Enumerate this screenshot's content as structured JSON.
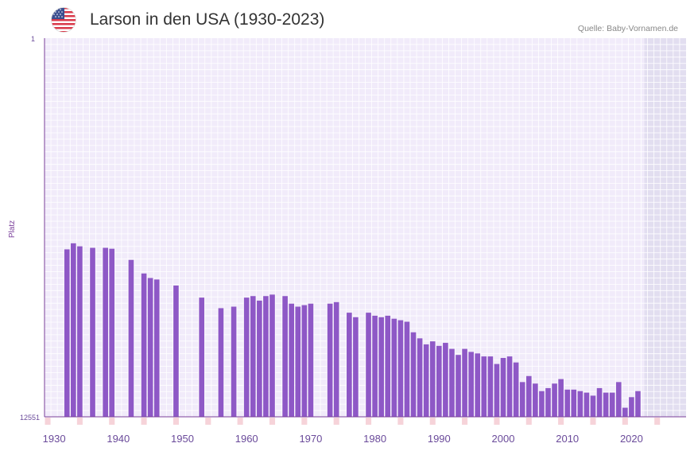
{
  "header": {
    "title": "Larson in den USA (1930-2023)",
    "source": "Quelle: Baby-Vornamen.de",
    "flag_icon": "us-flag-icon"
  },
  "colors": {
    "bar": "#8e58c6",
    "plot_bg": "#f1ebfa",
    "future_bg": "#e2def0",
    "grid": "#ffffff",
    "axis": "#7a3f9a",
    "tick_mark": "#de6a78",
    "tick_mark_light": "#f6d3d9"
  },
  "chart_data": {
    "type": "bar",
    "title": "Larson in den USA (1930-2023)",
    "xlabel": "",
    "ylabel": "Platz",
    "yaxis_top_label": "1",
    "yaxis_bottom_label": "12551",
    "ylim": [
      1,
      12551
    ],
    "xlim": [
      1929,
      2029
    ],
    "x_ticks": [
      1930,
      1940,
      1950,
      1960,
      1970,
      1980,
      1990,
      2000,
      2010,
      2020
    ],
    "future_start": 2022.5,
    "series": [
      {
        "name": "Platz",
        "x": [
          1932,
          1933,
          1934,
          1936,
          1938,
          1939,
          1942,
          1944,
          1945,
          1946,
          1949,
          1953,
          1956,
          1958,
          1960,
          1961,
          1962,
          1963,
          1964,
          1966,
          1967,
          1968,
          1969,
          1970,
          1973,
          1974,
          1976,
          1977,
          1979,
          1980,
          1981,
          1982,
          1983,
          1984,
          1985,
          1986,
          1987,
          1988,
          1989,
          1990,
          1991,
          1992,
          1993,
          1994,
          1995,
          1996,
          1997,
          1998,
          1999,
          2000,
          2001,
          2002,
          2003,
          2004,
          2005,
          2006,
          2007,
          2008,
          2009,
          2010,
          2011,
          2012,
          2013,
          2014,
          2015,
          2016,
          2017,
          2018,
          2019,
          2020,
          2021
        ],
        "values": [
          7000,
          6800,
          6900,
          6950,
          6950,
          6980,
          7350,
          7800,
          7950,
          8000,
          8200,
          8600,
          8950,
          8900,
          8600,
          8550,
          8700,
          8550,
          8500,
          8550,
          8800,
          8900,
          8850,
          8800,
          8800,
          8750,
          9100,
          9250,
          9100,
          9200,
          9250,
          9200,
          9300,
          9350,
          9400,
          9750,
          9950,
          10150,
          10050,
          10200,
          10100,
          10300,
          10500,
          10300,
          10400,
          10450,
          10550,
          10550,
          10800,
          10600,
          10550,
          10750,
          11400,
          11200,
          11450,
          11700,
          11600,
          11450,
          11300,
          11650,
          11650,
          11700,
          11750,
          11850,
          11600,
          11750,
          11750,
          11400,
          12250,
          11900,
          11700
        ]
      }
    ]
  }
}
